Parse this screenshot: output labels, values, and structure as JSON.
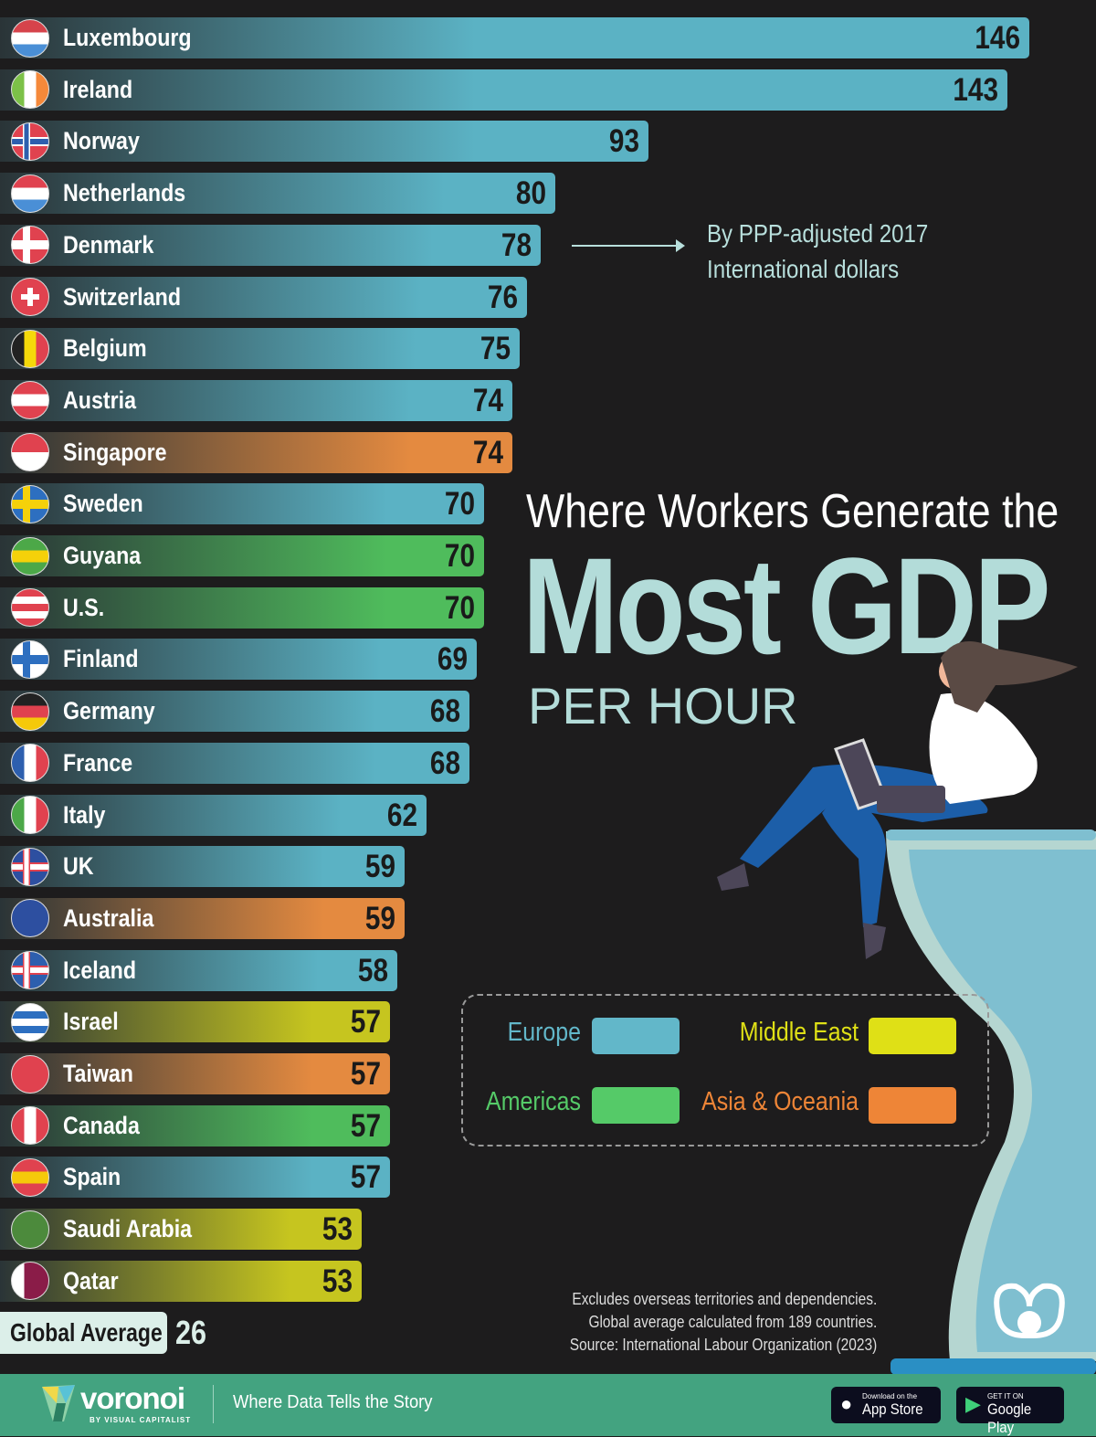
{
  "chart_data": {
    "type": "bar",
    "orientation": "horizontal",
    "title": "Where Workers Generate the",
    "title_emphasis": "Most GDP",
    "subtitle": "PER HOUR",
    "unit_note": "By PPP-adjusted 2017 International dollars",
    "unit_note_lines": [
      "By PPP-adjusted 2017",
      "International dollars"
    ],
    "categories": [
      "Luxembourg",
      "Ireland",
      "Norway",
      "Netherlands",
      "Denmark",
      "Switzerland",
      "Belgium",
      "Austria",
      "Singapore",
      "Sweden",
      "Guyana",
      "U.S.",
      "Finland",
      "Germany",
      "France",
      "Italy",
      "UK",
      "Australia",
      "Iceland",
      "Israel",
      "Taiwan",
      "Canada",
      "Spain",
      "Saudi Arabia",
      "Qatar"
    ],
    "values": [
      146,
      143,
      93,
      80,
      78,
      76,
      75,
      74,
      74,
      70,
      70,
      70,
      69,
      68,
      68,
      62,
      59,
      59,
      58,
      57,
      57,
      57,
      57,
      53,
      53
    ],
    "regions": [
      "Europe",
      "Europe",
      "Europe",
      "Europe",
      "Europe",
      "Europe",
      "Europe",
      "Europe",
      "Asia & Oceania",
      "Europe",
      "Americas",
      "Americas",
      "Europe",
      "Europe",
      "Europe",
      "Europe",
      "Europe",
      "Asia & Oceania",
      "Europe",
      "Middle East",
      "Asia & Oceania",
      "Americas",
      "Europe",
      "Middle East",
      "Middle East"
    ],
    "flags": [
      {
        "dir": "h",
        "colors": [
          "#d6434b",
          "#ffffff",
          "#4a8fd6"
        ]
      },
      {
        "dir": "v",
        "colors": [
          "#7cc148",
          "#ffffff",
          "#f5893a"
        ]
      },
      {
        "dir": "cross",
        "colors": [
          "#e0424f",
          "#ffffff",
          "#2d5fae"
        ]
      },
      {
        "dir": "h",
        "colors": [
          "#e0424f",
          "#ffffff",
          "#4a8fd6"
        ]
      },
      {
        "dir": "cross",
        "colors": [
          "#e0424f",
          "#ffffff",
          "#ffffff"
        ]
      },
      {
        "dir": "plus",
        "colors": [
          "#e0424f",
          "#ffffff"
        ]
      },
      {
        "dir": "v",
        "colors": [
          "#222222",
          "#f5d90a",
          "#e0424f"
        ]
      },
      {
        "dir": "h",
        "colors": [
          "#e0424f",
          "#ffffff",
          "#e0424f"
        ]
      },
      {
        "dir": "h",
        "colors": [
          "#e0424f",
          "#ffffff"
        ]
      },
      {
        "dir": "cross",
        "colors": [
          "#2d6fc0",
          "#f5d10a",
          "#f5d10a"
        ]
      },
      {
        "dir": "h",
        "colors": [
          "#4ca848",
          "#f5d10a",
          "#4ca848"
        ]
      },
      {
        "dir": "h",
        "colors": [
          "#e0424f",
          "#ffffff",
          "#e0424f",
          "#ffffff",
          "#e0424f"
        ]
      },
      {
        "dir": "cross",
        "colors": [
          "#ffffff",
          "#2d6fc0",
          "#2d6fc0"
        ]
      },
      {
        "dir": "h",
        "colors": [
          "#222222",
          "#e0424f",
          "#f5c90a"
        ]
      },
      {
        "dir": "v",
        "colors": [
          "#2d5fae",
          "#ffffff",
          "#e0424f"
        ]
      },
      {
        "dir": "v",
        "colors": [
          "#4ca848",
          "#ffffff",
          "#e0424f"
        ]
      },
      {
        "dir": "cross",
        "colors": [
          "#2d4fa0",
          "#e0424f",
          "#ffffff"
        ]
      },
      {
        "dir": "h",
        "colors": [
          "#2d4fa0",
          "#2d4fa0"
        ]
      },
      {
        "dir": "cross",
        "colors": [
          "#2d5fae",
          "#e0424f",
          "#ffffff"
        ]
      },
      {
        "dir": "h",
        "colors": [
          "#ffffff",
          "#2d6fc0",
          "#ffffff",
          "#2d6fc0",
          "#ffffff"
        ]
      },
      {
        "dir": "h",
        "colors": [
          "#e0424f",
          "#e0424f"
        ]
      },
      {
        "dir": "v",
        "colors": [
          "#e0424f",
          "#ffffff",
          "#e0424f"
        ]
      },
      {
        "dir": "h",
        "colors": [
          "#e0424f",
          "#f5c90a",
          "#e0424f"
        ]
      },
      {
        "dir": "h",
        "colors": [
          "#4c8a3c",
          "#4c8a3c"
        ]
      },
      {
        "dir": "v",
        "colors": [
          "#ffffff",
          "#8a1c48",
          "#8a1c48"
        ]
      }
    ],
    "global_average": {
      "label": "Global Average",
      "value": 26
    },
    "legend": [
      {
        "name": "Europe",
        "color": "#62b7c9",
        "bar": "#5bb2c4"
      },
      {
        "name": "Middle East",
        "color": "#dfe016",
        "bar": "#c6c51f"
      },
      {
        "name": "Americas",
        "color": "#55ca68",
        "bar": "#4fbc5c"
      },
      {
        "name": "Asia & Oceania",
        "color": "#ee8537",
        "bar": "#e48a40"
      }
    ],
    "xlim": [
      0,
      150
    ]
  },
  "notes": [
    "Excludes overseas territories and dependencies.",
    "Global average calculated from 189 countries.",
    "Source: International Labour Organization (2023)"
  ],
  "footer": {
    "brand": "voronoi",
    "brand_sub": "BY VISUAL CAPITALIST",
    "tagline": "Where Data Tells the Story",
    "app_store": {
      "small": "Download on the",
      "big": "App Store"
    },
    "google_play": {
      "small": "GET IT ON",
      "big": "Google Play"
    }
  },
  "colors": {
    "background": "#1d1c1d",
    "footer": "#43a380",
    "title_accent": "#b3dcd9"
  }
}
